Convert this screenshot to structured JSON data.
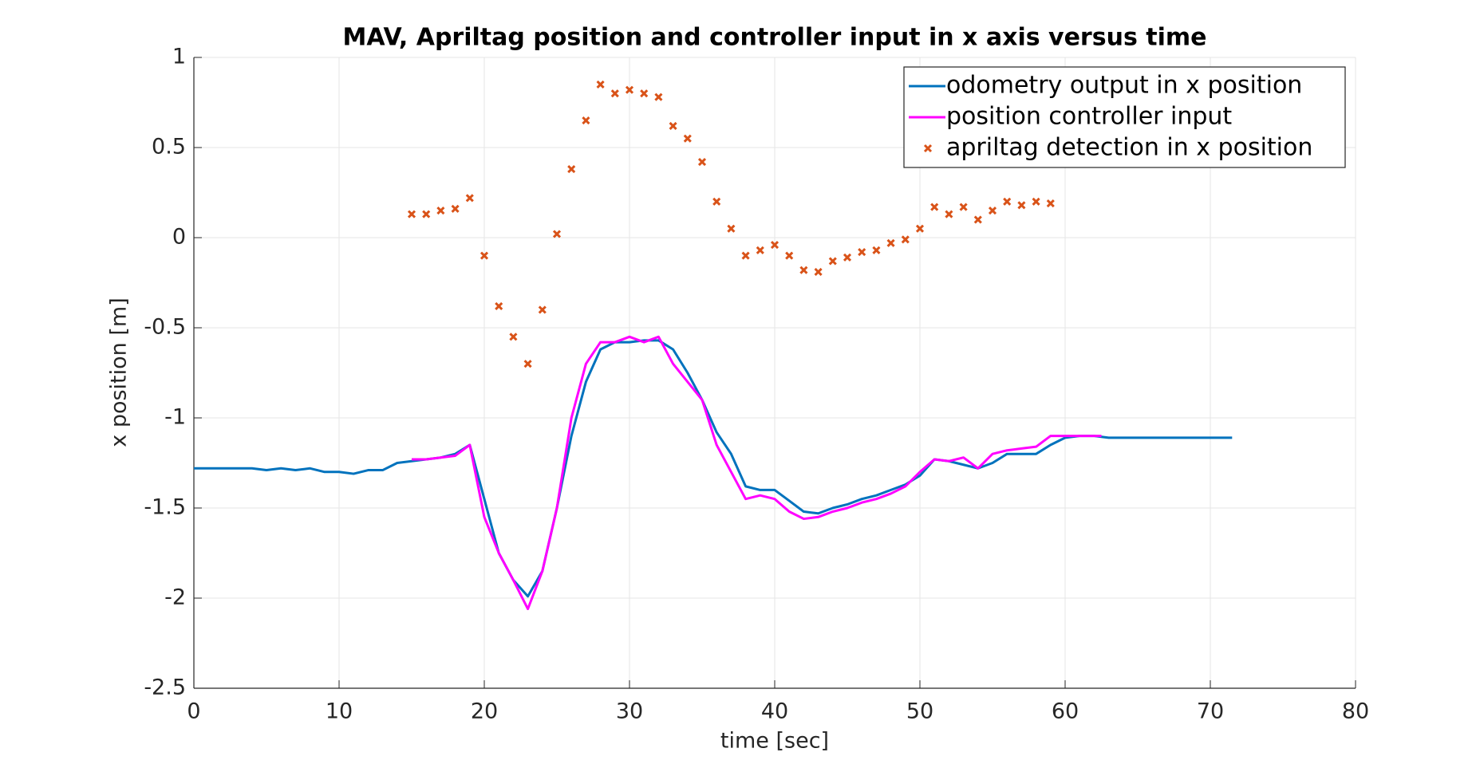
{
  "chart_data": {
    "type": "line",
    "title": "MAV, Apriltag position and controller input in x axis versus time",
    "xlabel": "time [sec]",
    "ylabel": "x position [m]",
    "xlim": [
      0,
      80
    ],
    "xticks": [
      0,
      10,
      20,
      30,
      40,
      50,
      60,
      70,
      80
    ],
    "ylim": [
      -2.5,
      1
    ],
    "yticks": [
      -2.5,
      -2,
      -1.5,
      -1,
      -0.5,
      0,
      0.5,
      1
    ],
    "grid": true,
    "legend": "upper right",
    "series": [
      {
        "name": "odometry output in x position",
        "color": "#0072bd",
        "mode": "line",
        "x": [
          0,
          1,
          2,
          3,
          4,
          5,
          6,
          7,
          8,
          9,
          10,
          11,
          12,
          13,
          14,
          15,
          16,
          17,
          18,
          19,
          20,
          21,
          22,
          23,
          24,
          25,
          26,
          27,
          28,
          29,
          30,
          31,
          32,
          33,
          34,
          35,
          36,
          37,
          38,
          39,
          40,
          41,
          42,
          43,
          44,
          45,
          46,
          47,
          48,
          49,
          50,
          51,
          52,
          53,
          54,
          55,
          56,
          57,
          58,
          59,
          60,
          61,
          62,
          63,
          64,
          65,
          66,
          67,
          68,
          69,
          70,
          71.5
        ],
        "values": [
          -1.28,
          -1.28,
          -1.28,
          -1.28,
          -1.28,
          -1.29,
          -1.28,
          -1.29,
          -1.28,
          -1.3,
          -1.3,
          -1.31,
          -1.29,
          -1.29,
          -1.25,
          -1.24,
          -1.23,
          -1.22,
          -1.2,
          -1.15,
          -1.45,
          -1.75,
          -1.9,
          -1.99,
          -1.85,
          -1.5,
          -1.1,
          -0.8,
          -0.62,
          -0.58,
          -0.58,
          -0.57,
          -0.57,
          -0.62,
          -0.75,
          -0.9,
          -1.08,
          -1.2,
          -1.38,
          -1.4,
          -1.4,
          -1.46,
          -1.52,
          -1.53,
          -1.5,
          -1.48,
          -1.45,
          -1.43,
          -1.4,
          -1.37,
          -1.32,
          -1.23,
          -1.24,
          -1.26,
          -1.28,
          -1.25,
          -1.2,
          -1.2,
          -1.2,
          -1.15,
          -1.11,
          -1.1,
          -1.1,
          -1.11,
          -1.11,
          -1.11,
          -1.11,
          -1.11,
          -1.11,
          -1.11,
          -1.11,
          -1.11
        ]
      },
      {
        "name": "position controller input",
        "color": "#ff00ff",
        "mode": "line",
        "x": [
          15,
          16,
          17,
          18,
          19,
          20,
          21,
          22,
          23,
          24,
          25,
          26,
          27,
          28,
          29,
          30,
          31,
          32,
          33,
          34,
          35,
          36,
          37,
          38,
          39,
          40,
          41,
          42,
          43,
          44,
          45,
          46,
          47,
          48,
          49,
          50,
          51,
          52,
          53,
          54,
          55,
          56,
          57,
          58,
          59,
          60,
          61,
          62.5
        ],
        "values": [
          -1.23,
          -1.23,
          -1.22,
          -1.21,
          -1.15,
          -1.55,
          -1.75,
          -1.9,
          -2.06,
          -1.85,
          -1.5,
          -1,
          -0.7,
          -0.58,
          -0.58,
          -0.55,
          -0.58,
          -0.55,
          -0.7,
          -0.8,
          -0.9,
          -1.15,
          -1.3,
          -1.45,
          -1.43,
          -1.45,
          -1.52,
          -1.56,
          -1.55,
          -1.52,
          -1.5,
          -1.47,
          -1.45,
          -1.42,
          -1.38,
          -1.3,
          -1.23,
          -1.24,
          -1.22,
          -1.28,
          -1.2,
          -1.18,
          -1.17,
          -1.16,
          -1.1,
          -1.1,
          -1.1,
          -1.1
        ]
      },
      {
        "name": "apriltag detection in x position",
        "color": "#d95319",
        "mode": "markers",
        "x": [
          15,
          16,
          17,
          18,
          19,
          20,
          21,
          22,
          23,
          24,
          25,
          26,
          27,
          28,
          29,
          30,
          31,
          32,
          33,
          34,
          35,
          36,
          37,
          38,
          39,
          40,
          41,
          42,
          43,
          44,
          45,
          46,
          47,
          48,
          49,
          50,
          51,
          52,
          53,
          54,
          55,
          56,
          57,
          58,
          59
        ],
        "values": [
          0.13,
          0.13,
          0.15,
          0.16,
          0.22,
          -0.1,
          -0.38,
          -0.55,
          -0.7,
          -0.4,
          0.02,
          0.38,
          0.65,
          0.85,
          0.8,
          0.82,
          0.8,
          0.78,
          0.62,
          0.55,
          0.42,
          0.2,
          0.05,
          -0.1,
          -0.07,
          -0.04,
          -0.1,
          -0.18,
          -0.19,
          -0.13,
          -0.11,
          -0.08,
          -0.07,
          -0.03,
          -0.01,
          0.05,
          0.17,
          0.13,
          0.17,
          0.1,
          0.15,
          0.2,
          0.18,
          0.2,
          0.19
        ]
      }
    ]
  }
}
